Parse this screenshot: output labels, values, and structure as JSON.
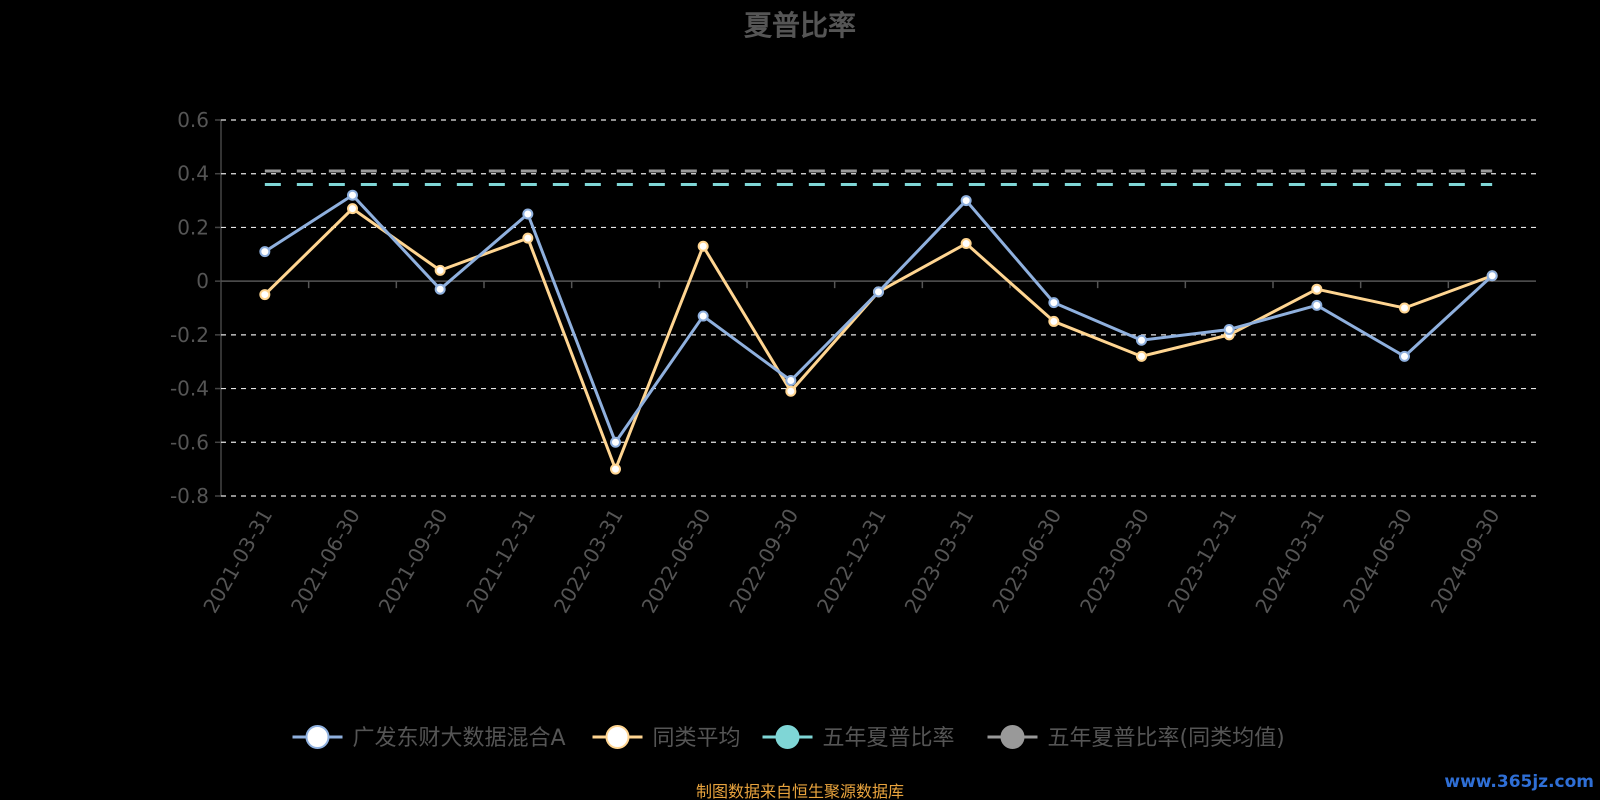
{
  "footer": {
    "source_note": "制图数据来自恒生聚源数据库",
    "watermark": "www.365jz.com"
  },
  "chart_data": {
    "type": "line",
    "title": "夏普比率",
    "categories": [
      "2021-03-31",
      "2021-06-30",
      "2021-09-30",
      "2021-12-31",
      "2022-03-31",
      "2022-06-30",
      "2022-09-30",
      "2022-12-31",
      "2023-03-31",
      "2023-06-30",
      "2023-09-30",
      "2023-12-31",
      "2024-03-31",
      "2024-06-30",
      "2024-09-30"
    ],
    "ylim": [
      -0.8,
      0.6
    ],
    "yticks": [
      0.6,
      0.4,
      0.2,
      0,
      -0.2,
      -0.4,
      -0.6,
      -0.8
    ],
    "ytick_labels": [
      "0.6",
      "0.4",
      "0.2",
      "0",
      "-0.2",
      "-0.4",
      "-0.6",
      "-0.8"
    ],
    "grid": true,
    "legend_position": "bottom",
    "series": [
      {
        "name": "广发东财大数据混合A",
        "color": "#8fb0de",
        "marker_fill": "#ffffff",
        "style": "solid",
        "values": [
          0.11,
          0.32,
          -0.03,
          0.25,
          -0.6,
          -0.13,
          -0.37,
          -0.04,
          0.3,
          -0.08,
          -0.22,
          -0.18,
          -0.09,
          -0.28,
          0.02
        ]
      },
      {
        "name": "同类平均",
        "color": "#ffd591",
        "marker_fill": "#ffffff",
        "style": "solid",
        "values": [
          -0.05,
          0.27,
          0.04,
          0.16,
          -0.7,
          0.13,
          -0.41,
          -0.04,
          0.14,
          -0.15,
          -0.28,
          -0.2,
          -0.03,
          -0.1,
          0.02
        ]
      },
      {
        "name": "五年夏普比率",
        "color": "#7fd6d6",
        "marker_fill": "#7fd6d6",
        "style": "dashed",
        "values": [
          0.36,
          0.36,
          0.36,
          0.36,
          0.36,
          0.36,
          0.36,
          0.36,
          0.36,
          0.36,
          0.36,
          0.36,
          0.36,
          0.36,
          0.36
        ]
      },
      {
        "name": "五年夏普比率(同类均值)",
        "color": "#999999",
        "marker_fill": "#999999",
        "style": "dashed",
        "values": [
          0.41,
          0.41,
          0.41,
          0.41,
          0.41,
          0.41,
          0.41,
          0.41,
          0.41,
          0.41,
          0.41,
          0.41,
          0.41,
          0.41,
          0.41
        ]
      }
    ]
  }
}
